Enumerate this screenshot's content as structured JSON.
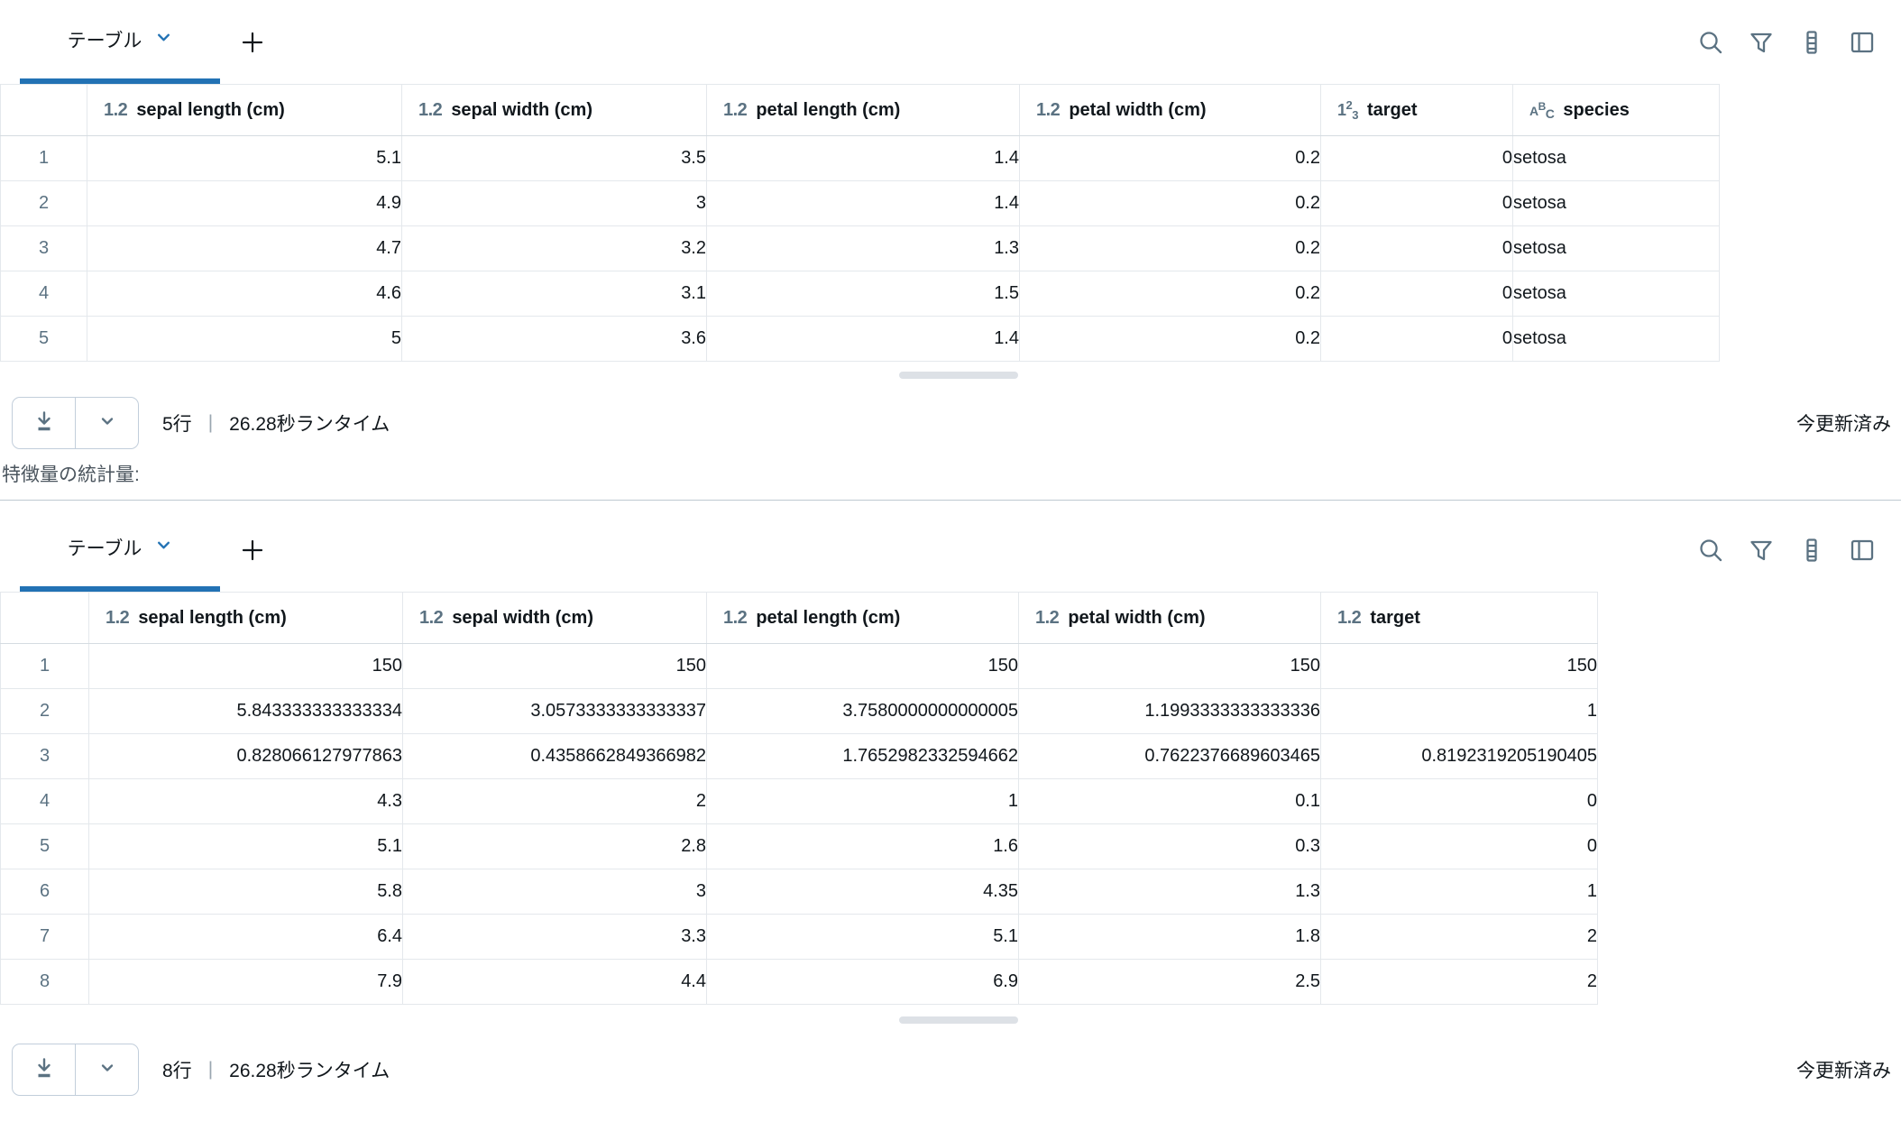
{
  "colors": {
    "accent_blue": "#2272b4",
    "icon_slate": "#5b7282"
  },
  "tab": {
    "label": "テーブル",
    "chevron_icon": "chevron-down-icon",
    "add_tab_icon": "plus-icon"
  },
  "toolbar_icons": [
    "search-icon",
    "filter-icon",
    "columns-icon",
    "panel-layout-icon"
  ],
  "tables": {
    "table1": {
      "columns": [
        {
          "type": "float",
          "label": "sepal length (cm)"
        },
        {
          "type": "float",
          "label": "sepal width (cm)"
        },
        {
          "type": "float",
          "label": "petal length (cm)"
        },
        {
          "type": "float",
          "label": "petal width (cm)"
        },
        {
          "type": "int",
          "label": "target"
        },
        {
          "type": "string",
          "label": "species"
        }
      ],
      "rows": [
        [
          "5.1",
          "3.5",
          "1.4",
          "0.2",
          "0",
          "setosa"
        ],
        [
          "4.9",
          "3",
          "1.4",
          "0.2",
          "0",
          "setosa"
        ],
        [
          "4.7",
          "3.2",
          "1.3",
          "0.2",
          "0",
          "setosa"
        ],
        [
          "4.6",
          "3.1",
          "1.5",
          "0.2",
          "0",
          "setosa"
        ],
        [
          "5",
          "3.6",
          "1.4",
          "0.2",
          "0",
          "setosa"
        ]
      ]
    },
    "table2": {
      "columns": [
        {
          "type": "float",
          "label": "sepal length (cm)"
        },
        {
          "type": "float",
          "label": "sepal width (cm)"
        },
        {
          "type": "float",
          "label": "petal length (cm)"
        },
        {
          "type": "float",
          "label": "petal width (cm)"
        },
        {
          "type": "float",
          "label": "target"
        }
      ],
      "rows": [
        [
          "150",
          "150",
          "150",
          "150",
          "150"
        ],
        [
          "5.843333333333334",
          "3.0573333333333337",
          "3.7580000000000005",
          "1.1993333333333336",
          "1"
        ],
        [
          "0.828066127977863",
          "0.4358662849366982",
          "1.7652982332594662",
          "0.7622376689603465",
          "0.8192319205190405"
        ],
        [
          "4.3",
          "2",
          "1",
          "0.1",
          "0"
        ],
        [
          "5.1",
          "2.8",
          "1.6",
          "0.3",
          "0"
        ],
        [
          "5.8",
          "3",
          "4.35",
          "1.3",
          "1"
        ],
        [
          "6.4",
          "3.3",
          "5.1",
          "1.8",
          "2"
        ],
        [
          "7.9",
          "4.4",
          "6.9",
          "2.5",
          "2"
        ]
      ]
    }
  },
  "footers": {
    "table1": {
      "row_count": "5行",
      "separator": "|",
      "runtime": "26.28秒ランタイム",
      "status": "今更新済み",
      "download_icon": "download-icon",
      "menu_icon": "chevron-down-icon"
    },
    "table2": {
      "row_count": "8行",
      "separator": "|",
      "runtime": "26.28秒ランタイム",
      "status": "今更新済み",
      "download_icon": "download-icon",
      "menu_icon": "chevron-down-icon"
    }
  },
  "section_label": "特徴量の統計量:"
}
